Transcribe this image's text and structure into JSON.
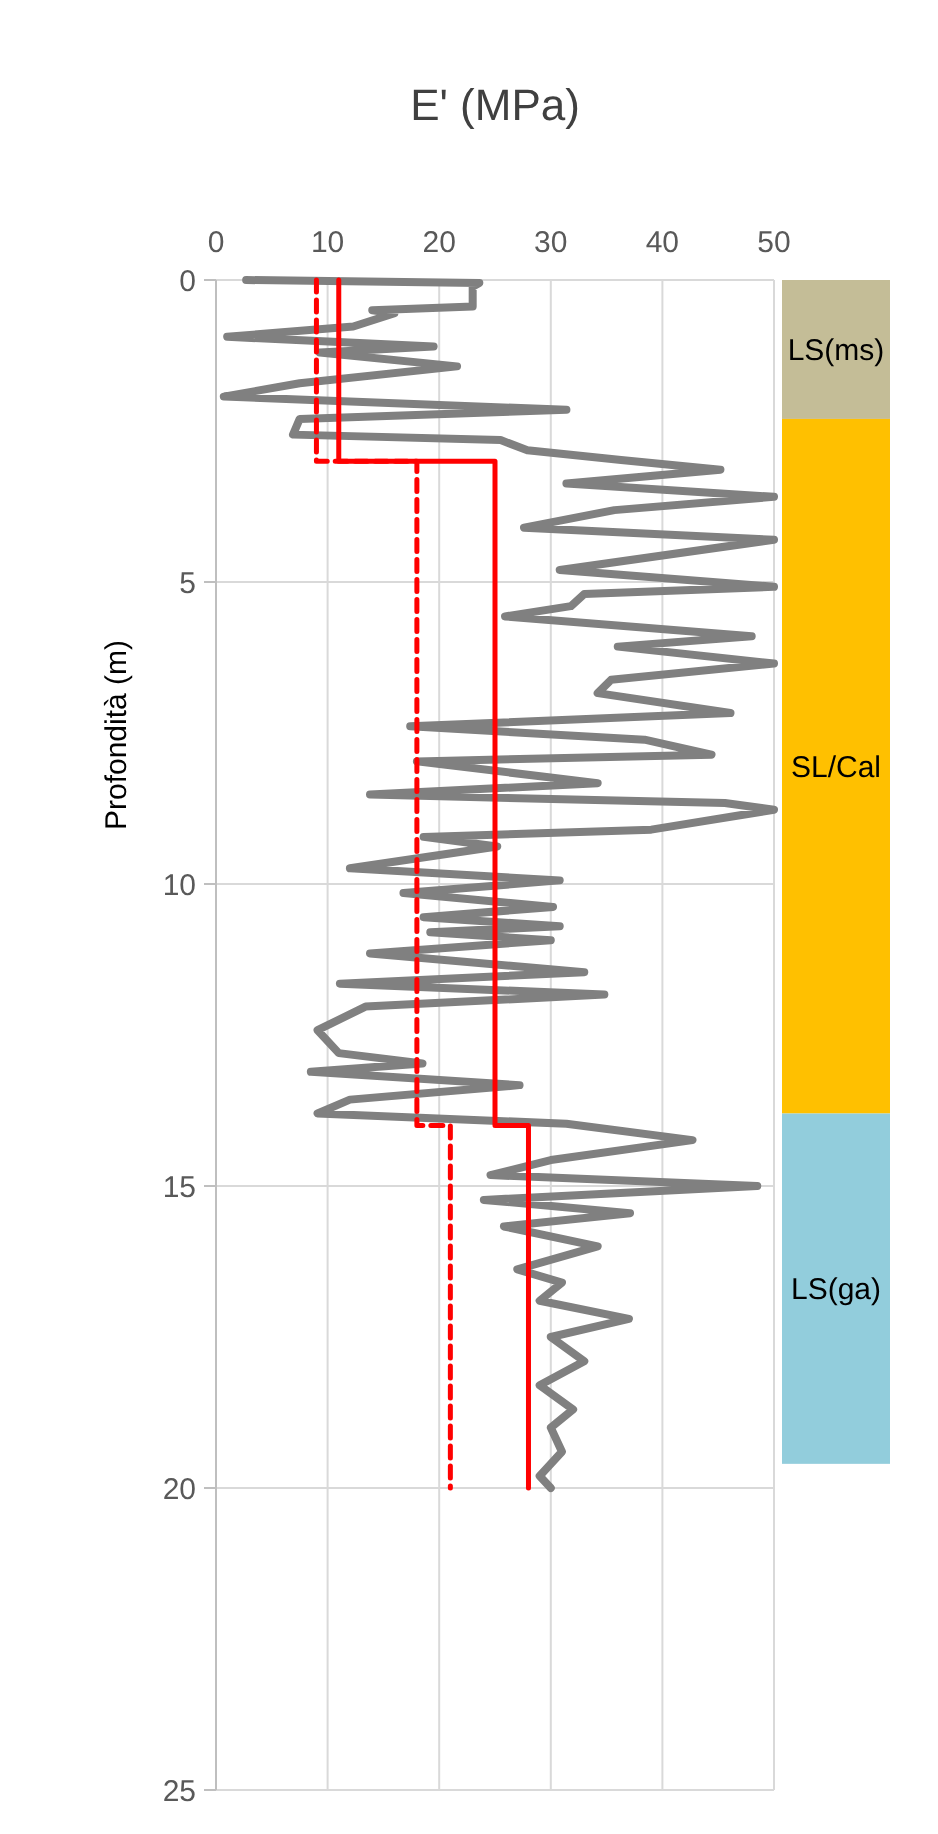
{
  "chart_data": [
    {
      "type": "line",
      "xlabel": "E' (MPa)",
      "ylabel": "Profondità (m)",
      "xlim": [
        0,
        50
      ],
      "xticks": [
        0,
        10,
        20,
        30,
        40,
        50
      ],
      "ylim": [
        25,
        0
      ],
      "yticks": [
        0,
        5,
        10,
        15,
        20,
        25
      ],
      "grid": true,
      "marker": "none",
      "series": [
        {
          "color": "#808080",
          "line_style": "solid",
          "x": [
            2.7,
            23.6,
            23,
            23,
            14,
            16,
            12.3,
            1,
            19.5,
            9.3,
            21.6,
            7.5,
            0.7,
            31.4,
            7.5,
            6.9,
            25.5,
            27.9,
            36.3,
            45.2,
            31.4,
            50,
            35.7,
            27.6,
            50,
            30.8,
            50,
            33,
            31.8,
            25.9,
            48,
            36,
            50,
            35.4,
            34.2,
            46.1,
            17.4,
            38.4,
            44.4,
            18,
            34.2,
            13.8,
            45.6,
            50,
            39,
            18.6,
            25.2,
            12,
            30.8,
            16.8,
            30.2,
            18.6,
            30.8,
            19.2,
            30,
            13.8,
            33,
            11.1,
            34.8,
            13.4,
            9.1,
            11,
            18.5,
            8.5,
            27.2,
            12,
            9.1,
            31.4,
            42.7,
            30,
            24.6,
            48.5,
            24,
            37.1,
            25.8,
            34.2,
            27,
            31,
            29,
            37,
            30,
            33,
            29,
            32,
            30,
            31,
            29,
            30
          ],
          "values": [
            0,
            0.05,
            0.11,
            0.44,
            0.5,
            0.55,
            0.77,
            0.94,
            1.1,
            1.2,
            1.43,
            1.71,
            1.93,
            2.15,
            2.3,
            2.56,
            2.65,
            2.82,
            2.98,
            3.14,
            3.37,
            3.59,
            3.81,
            4.1,
            4.3,
            4.8,
            5.08,
            5.2,
            5.4,
            5.57,
            5.9,
            6.07,
            6.35,
            6.62,
            6.84,
            7.17,
            7.39,
            7.61,
            7.86,
            7.97,
            8.33,
            8.52,
            8.66,
            8.77,
            9.1,
            9.22,
            9.38,
            9.74,
            9.94,
            10.15,
            10.38,
            10.55,
            10.7,
            10.8,
            10.93,
            11.15,
            11.46,
            11.65,
            11.83,
            12.03,
            12.42,
            12.8,
            12.97,
            13.11,
            13.33,
            13.57,
            13.8,
            13.97,
            14.24,
            14.57,
            14.82,
            15,
            15.23,
            15.45,
            15.67,
            16,
            16.38,
            16.6,
            16.9,
            17.2,
            17.5,
            17.9,
            18.3,
            18.7,
            19,
            19.4,
            19.8,
            20
          ]
        },
        {
          "color": "#ff0000",
          "line_style": "solid",
          "x": [
            11,
            11,
            25,
            25,
            28,
            28
          ],
          "values": [
            0,
            3,
            3,
            14,
            14,
            20
          ]
        },
        {
          "color": "#ff0000",
          "line_style": "dashed",
          "x": [
            9,
            9,
            18,
            18,
            21,
            21
          ],
          "values": [
            0,
            3,
            3,
            14,
            14,
            20
          ]
        }
      ]
    },
    {
      "type": "bar",
      "stacked": true,
      "categories": [
        null
      ],
      "ylim": [
        25,
        0
      ],
      "series": [
        {
          "name": "LS(ms)",
          "color": "#c4bd97",
          "values": [
            2.3
          ]
        },
        {
          "name": "SL/Cal",
          "color": "#ffc000",
          "values": [
            11.5
          ]
        },
        {
          "name": "LS(ga)",
          "color": "#92cddc",
          "values": [
            5.8
          ]
        }
      ]
    }
  ]
}
